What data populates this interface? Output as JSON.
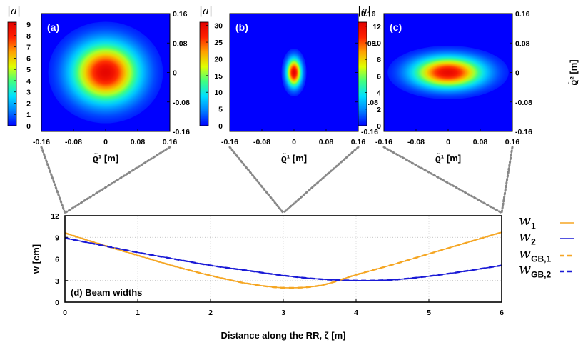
{
  "colors": {
    "w1": "#f5a623",
    "w2": "#1a1ad6",
    "colormap": [
      "#0000ff",
      "#0080ff",
      "#00e0ff",
      "#40ff80",
      "#e0ff00",
      "#ffa000",
      "#ff2000",
      "#e00000"
    ]
  },
  "chart_data": [
    {
      "type": "heatmap",
      "panel_label": "(a)",
      "colorbar_title": "|a|",
      "colorbar_ticks": [
        "0",
        "1",
        "2",
        "3",
        "4",
        "5",
        "6",
        "7",
        "8",
        "9"
      ],
      "colorbar_range": [
        0,
        9.2
      ],
      "peak": 9.0,
      "sigma_x": 0.055,
      "sigma_y": 0.053,
      "x_ticks": [
        "-0.16",
        "-0.08",
        "0",
        "0.08",
        "0.16"
      ],
      "y_ticks": [
        "0.16",
        "0.08",
        "0",
        "-0.08",
        "-0.16"
      ],
      "xlim": [
        -0.16,
        0.16
      ],
      "ylim": [
        -0.16,
        0.16
      ],
      "xlabel": "ϱ̃¹ [m]",
      "ylabel": ""
    },
    {
      "type": "heatmap",
      "panel_label": "(b)",
      "colorbar_title": "|a|",
      "colorbar_ticks": [
        "0",
        "5",
        "10",
        "15",
        "20",
        "25",
        "30"
      ],
      "colorbar_range": [
        0,
        31
      ],
      "peak": 30.5,
      "sigma_x": 0.012,
      "sigma_y": 0.025,
      "x_ticks": [
        "-0.16",
        "-0.08",
        "0",
        "0.08",
        "0.16"
      ],
      "y_ticks": [
        "0.16",
        "0.08",
        "0",
        "-0.08",
        "-0.16"
      ],
      "xlim": [
        -0.16,
        0.16
      ],
      "ylim": [
        -0.16,
        0.16
      ],
      "xlabel": "ϱ̃¹ [m]",
      "ylabel": ""
    },
    {
      "type": "heatmap",
      "panel_label": "(c)",
      "colorbar_title": "|a|",
      "colorbar_ticks": [
        "0",
        "2",
        "4",
        "6",
        "8",
        "10",
        "12"
      ],
      "colorbar_range": [
        0,
        12.5
      ],
      "peak": 12.0,
      "sigma_x": 0.058,
      "sigma_y": 0.028,
      "x_ticks": [
        "-0.16",
        "-0.08",
        "0",
        "0.08",
        "0.16"
      ],
      "y_ticks": [
        "0.16",
        "0.08",
        "0",
        "-0.08",
        "-0.16"
      ],
      "xlim": [
        -0.16,
        0.16
      ],
      "ylim": [
        -0.16,
        0.16
      ],
      "xlabel": "ϱ̃¹ [m]",
      "ylabel": "ϱ̃² [m]"
    },
    {
      "type": "line",
      "panel_label": "(d) Beam widths",
      "xlabel": "Distance along the RR, ζ [m]",
      "ylabel": "w [cm]",
      "xlim": [
        0,
        6
      ],
      "ylim": [
        0,
        12
      ],
      "x_ticks": [
        "0",
        "1",
        "2",
        "3",
        "4",
        "5",
        "6"
      ],
      "y_ticks": [
        "0",
        "3",
        "6",
        "9",
        "12"
      ],
      "grid": true,
      "legend_position": "right",
      "x": [
        0,
        0.5,
        1,
        1.5,
        2,
        2.5,
        3,
        3.5,
        4,
        4.5,
        5,
        5.5,
        6
      ],
      "series": [
        {
          "name": "w1",
          "label_main": "w",
          "label_sub": "1",
          "style": "solid",
          "color_key": "w1",
          "values": [
            9.6,
            8.0,
            6.5,
            5.0,
            3.7,
            2.6,
            2.0,
            2.3,
            3.8,
            5.2,
            6.7,
            8.2,
            9.7
          ]
        },
        {
          "name": "w2",
          "label_main": "w",
          "label_sub": "2",
          "style": "solid",
          "color_key": "w2",
          "values": [
            8.9,
            7.9,
            6.9,
            6.0,
            5.1,
            4.4,
            3.7,
            3.2,
            3.0,
            3.1,
            3.6,
            4.3,
            5.1
          ]
        },
        {
          "name": "wGB,1",
          "label_main": "w",
          "label_sub": "GB,1",
          "style": "dashed",
          "color_key": "w1",
          "values": [
            9.6,
            8.0,
            6.5,
            5.0,
            3.7,
            2.6,
            2.0,
            2.3,
            3.8,
            5.2,
            6.7,
            8.2,
            9.7
          ]
        },
        {
          "name": "wGB,2",
          "label_main": "w",
          "label_sub": "GB,2",
          "style": "dashed",
          "color_key": "w2",
          "values": [
            8.9,
            7.9,
            6.9,
            6.0,
            5.1,
            4.4,
            3.7,
            3.2,
            3.0,
            3.1,
            3.6,
            4.3,
            5.1
          ]
        }
      ]
    }
  ]
}
